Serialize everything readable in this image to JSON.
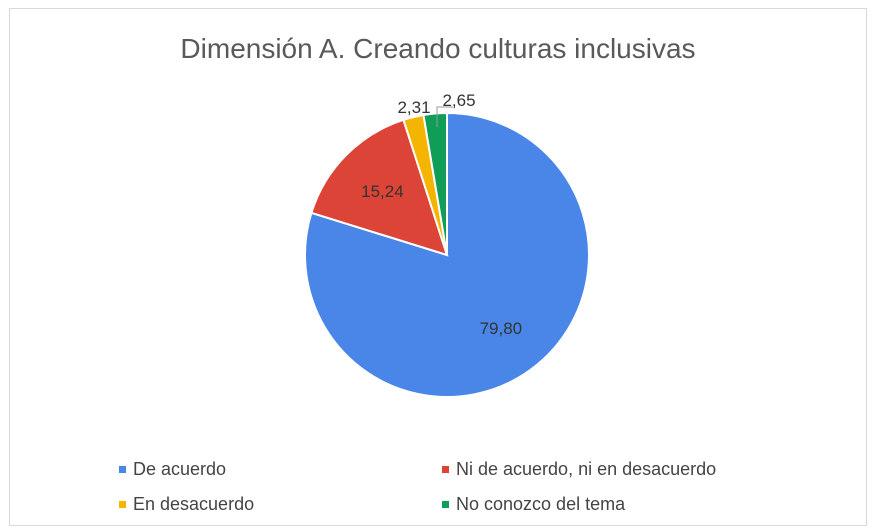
{
  "chart_data": {
    "type": "pie",
    "title": "Dimensión A. Creando culturas inclusivas",
    "slices": [
      {
        "label": "De acuerdo",
        "value": 79.8,
        "display": "79,80",
        "color": "#4a86e8"
      },
      {
        "label": "Ni de acuerdo, ni en desacuerdo",
        "value": 15.24,
        "display": "15,24",
        "color": "#db4437"
      },
      {
        "label": "En desacuerdo",
        "value": 2.31,
        "display": "2,31",
        "color": "#f4b400"
      },
      {
        "label": "No conozco del tema",
        "value": 2.65,
        "display": "2,65",
        "color": "#0f9d58"
      }
    ],
    "legend_position": "bottom"
  }
}
